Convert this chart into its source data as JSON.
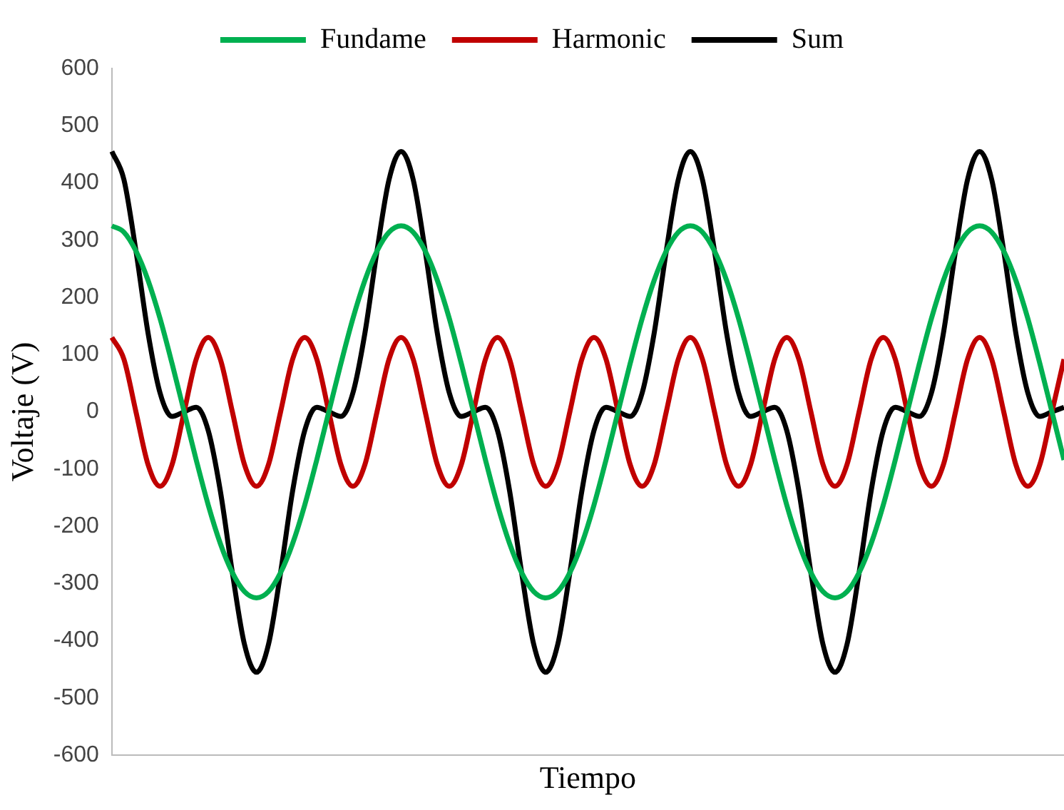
{
  "chart_data": {
    "type": "line",
    "xlabel": "Tiempo",
    "ylabel": "Voltaje (V)",
    "categories": [
      null,
      null,
      null,
      null,
      null,
      null,
      null,
      null,
      null,
      null,
      null,
      null,
      null,
      null,
      null,
      null,
      null,
      null,
      null,
      null,
      null,
      null,
      null,
      null,
      null,
      null,
      null,
      null,
      null,
      null,
      null,
      null,
      null,
      null,
      null,
      null,
      null,
      null,
      null,
      null,
      null,
      null,
      null,
      null,
      null,
      null,
      null,
      null,
      null,
      null,
      null,
      null,
      null,
      null,
      null,
      null,
      null,
      null,
      null,
      null,
      null,
      null,
      null,
      null,
      null,
      null,
      null,
      null,
      null,
      null,
      null,
      null,
      null,
      null,
      null,
      null,
      null,
      null,
      null,
      null
    ],
    "series": [
      {
        "name": "Fundame",
        "color": "#00b050",
        "values": [
          325,
          314,
          281,
          230,
          163,
          84,
          0,
          -84,
          -163,
          -230,
          -281,
          -314,
          -325,
          -314,
          -281,
          -230,
          -163,
          -84,
          0,
          84,
          163,
          230,
          281,
          314,
          325,
          314,
          281,
          230,
          163,
          84,
          0,
          -84,
          -163,
          -230,
          -281,
          -314,
          -325,
          -314,
          -281,
          -230,
          -163,
          -84,
          0,
          84,
          163,
          230,
          281,
          314,
          325,
          314,
          281,
          230,
          163,
          84,
          0,
          -84,
          -163,
          -230,
          -281,
          -314,
          -325,
          -314,
          -281,
          -230,
          -163,
          -84,
          0,
          84,
          163,
          230,
          281,
          314,
          325,
          314,
          281,
          230,
          163,
          84,
          0,
          -84
        ]
      },
      {
        "name": "Harmonic",
        "color": "#c00000",
        "values": [
          130,
          92,
          0,
          -92,
          -130,
          -92,
          0,
          92,
          130,
          92,
          0,
          -92,
          -130,
          -92,
          0,
          92,
          130,
          92,
          0,
          -92,
          -130,
          -92,
          0,
          92,
          130,
          92,
          0,
          -92,
          -130,
          -92,
          0,
          92,
          130,
          92,
          0,
          -92,
          -130,
          -92,
          0,
          92,
          130,
          92,
          0,
          -92,
          -130,
          -92,
          0,
          92,
          130,
          92,
          0,
          -92,
          -130,
          -92,
          0,
          92,
          130,
          92,
          0,
          -92,
          -130,
          -92,
          0,
          92,
          130,
          92,
          0,
          -92,
          -130,
          -92,
          0,
          92,
          130,
          92,
          0,
          -92,
          -130,
          -92,
          0,
          92
        ]
      },
      {
        "name": "Sum",
        "color": "#000000",
        "values": [
          455,
          406,
          281,
          138,
          33,
          -8,
          0,
          8,
          -33,
          -138,
          -281,
          -406,
          -455,
          -406,
          -281,
          -138,
          -33,
          8,
          0,
          -8,
          33,
          138,
          281,
          406,
          455,
          406,
          281,
          138,
          33,
          -8,
          0,
          8,
          -33,
          -138,
          -281,
          -406,
          -455,
          -406,
          -281,
          -138,
          -33,
          8,
          0,
          -8,
          33,
          138,
          281,
          406,
          455,
          406,
          281,
          138,
          33,
          -8,
          0,
          8,
          -33,
          -138,
          -281,
          -406,
          -455,
          -406,
          -281,
          -138,
          -33,
          8,
          0,
          -8,
          33,
          138,
          281,
          406,
          455,
          406,
          281,
          138,
          33,
          -8,
          0,
          8
        ]
      }
    ],
    "ylim": [
      -600,
      600
    ],
    "yticks": [
      -600,
      -500,
      -400,
      -300,
      -200,
      -100,
      0,
      100,
      200,
      300,
      400,
      500,
      600
    ],
    "grid": false,
    "legend": "top",
    "marker": "none",
    "line_style": "solid"
  }
}
